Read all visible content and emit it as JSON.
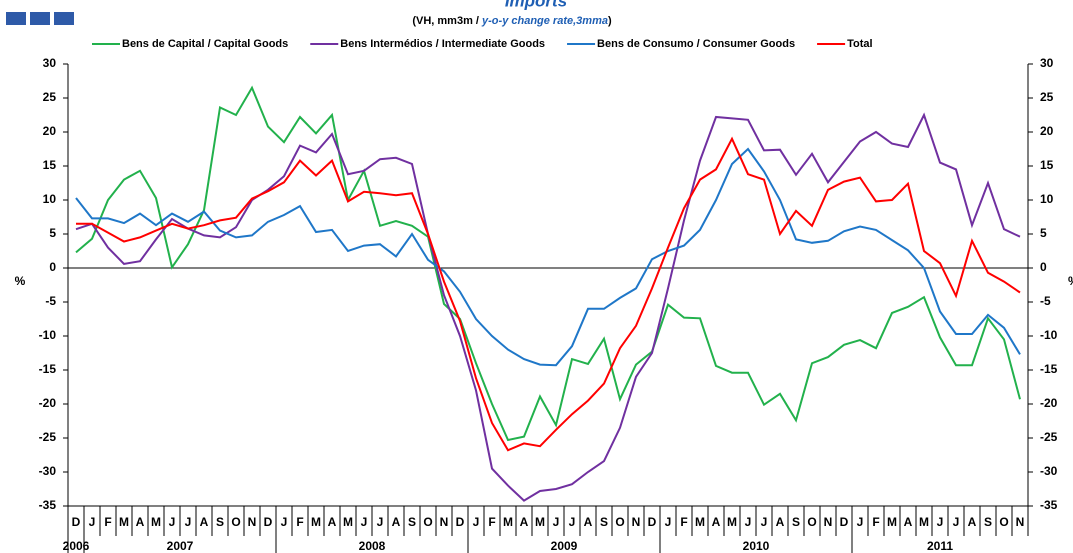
{
  "chart_data": {
    "type": "line",
    "title": "Imports",
    "subtitle": {
      "prefix": "(VH, mm3m / ",
      "emphasis": "y-o-y change rate,3mma",
      "suffix": ")"
    },
    "y_label": "%",
    "y2_label": "%",
    "categories": [
      "D",
      "J",
      "F",
      "M",
      "A",
      "M",
      "J",
      "J",
      "A",
      "S",
      "O",
      "N",
      "D",
      "J",
      "F",
      "M",
      "A",
      "M",
      "J",
      "J",
      "A",
      "S",
      "O",
      "N",
      "D",
      "J",
      "F",
      "M",
      "A",
      "M",
      "J",
      "J",
      "A",
      "S",
      "O",
      "N",
      "D",
      "J",
      "F",
      "M",
      "A",
      "M",
      "J",
      "J",
      "A",
      "S",
      "O",
      "N",
      "D",
      "J",
      "F",
      "M",
      "A",
      "M",
      "J",
      "J",
      "A",
      "S",
      "O",
      "N"
    ],
    "years": [
      "2006",
      "2007",
      "2008",
      "2009",
      "2010",
      "2011"
    ],
    "ylim": [
      -35,
      30
    ],
    "yticks": [
      -35,
      -30,
      -25,
      -20,
      -15,
      -10,
      -5,
      0,
      5,
      10,
      15,
      20,
      25,
      30
    ],
    "y2lim": [
      -35,
      30
    ],
    "y2ticks": [
      -35,
      -30,
      -25,
      -20,
      -15,
      -10,
      -5,
      0,
      5,
      10,
      15,
      20,
      25,
      30
    ],
    "series": [
      {
        "name": "Bens de Capital / Capital Goods",
        "color": "#22b14c",
        "values": [
          2.3,
          4.3,
          10,
          13,
          14.3,
          10.3,
          0.1,
          3.5,
          8.5,
          23.6,
          22.5,
          26.5,
          20.8,
          18.5,
          22.2,
          19.8,
          22.5,
          10,
          14.3,
          6.2,
          6.9,
          6.2,
          4.6,
          -5.3,
          -7.5,
          -14,
          -20,
          -25.3,
          -24.8,
          -18.9,
          -23.1,
          -13.4,
          -14.1,
          -10.4,
          -19.3,
          -14.2,
          -12.3,
          -5.4,
          -7.3,
          -7.4,
          -14.4,
          -15.4,
          -15.4,
          -20.1,
          -18.5,
          -22.4,
          -14,
          -13.1,
          -11.3,
          -10.6,
          -11.8,
          -6.6,
          -5.7,
          -4.3,
          -10.2,
          -14.3,
          -14.3,
          -7.4,
          -10.5,
          -19.3
        ]
      },
      {
        "name": "Bens Intermédios / Intermediate Goods",
        "color": "#7030a0",
        "values": [
          5.7,
          6.5,
          3,
          0.6,
          1,
          4.2,
          7.2,
          5.8,
          4.8,
          4.5,
          6,
          10,
          11.5,
          13.5,
          18,
          17,
          19.7,
          13.8,
          14.3,
          16,
          16.2,
          15.3,
          5,
          -4,
          -10,
          -18,
          -29.5,
          -32,
          -34.2,
          -32.8,
          -32.5,
          -31.8,
          -30,
          -28.4,
          -23.5,
          -16,
          -12.5,
          -3,
          7,
          15.8,
          22.2,
          22,
          21.8,
          17.3,
          17.4,
          13.7,
          16.8,
          12.6,
          15.6,
          18.6,
          20,
          18.3,
          17.8,
          22.5,
          15.5,
          14.5,
          6.3,
          12.5,
          5.7,
          4.6
        ]
      },
      {
        "name": "Bens de Consumo / Consumer Goods",
        "color": "#1f77c8",
        "values": [
          10.3,
          7.3,
          7.3,
          6.6,
          8,
          6.3,
          8,
          6.8,
          8.3,
          5.5,
          4.5,
          4.8,
          6.8,
          7.8,
          9.1,
          5.3,
          5.6,
          2.5,
          3.3,
          3.5,
          1.7,
          5,
          1.2,
          -0.5,
          -3.5,
          -7.5,
          -10,
          -12,
          -13.4,
          -14.2,
          -14.3,
          -11.5,
          -6,
          -6,
          -4.4,
          -3,
          1.3,
          2.5,
          3.3,
          5.6,
          10,
          15.3,
          17.5,
          14.2,
          10,
          4.2,
          3.7,
          4,
          5.4,
          6.1,
          5.6,
          4.1,
          2.6,
          0,
          -6.4,
          -9.7,
          -9.7,
          -6.9,
          -8.8,
          -12.7
        ]
      },
      {
        "name": "Total",
        "color": "#ff0000",
        "values": [
          6.5,
          6.5,
          5.2,
          3.9,
          4.5,
          5.5,
          6.5,
          5.8,
          6.3,
          7,
          7.4,
          10.2,
          11.3,
          12.6,
          15.8,
          13.6,
          15.8,
          9.8,
          11.2,
          11,
          10.7,
          11,
          5,
          -2,
          -7.8,
          -16.2,
          -22.8,
          -26.8,
          -25.8,
          -26.2,
          -23.8,
          -21.5,
          -19.5,
          -17,
          -11.8,
          -8.5,
          -3,
          3,
          8.8,
          13,
          14.5,
          19,
          13.8,
          13,
          5,
          8.4,
          6.2,
          11.5,
          12.7,
          13.3,
          9.8,
          10,
          12.4,
          2.5,
          0.7,
          -4.1,
          4,
          -0.7,
          -2,
          -3.6
        ]
      }
    ]
  }
}
